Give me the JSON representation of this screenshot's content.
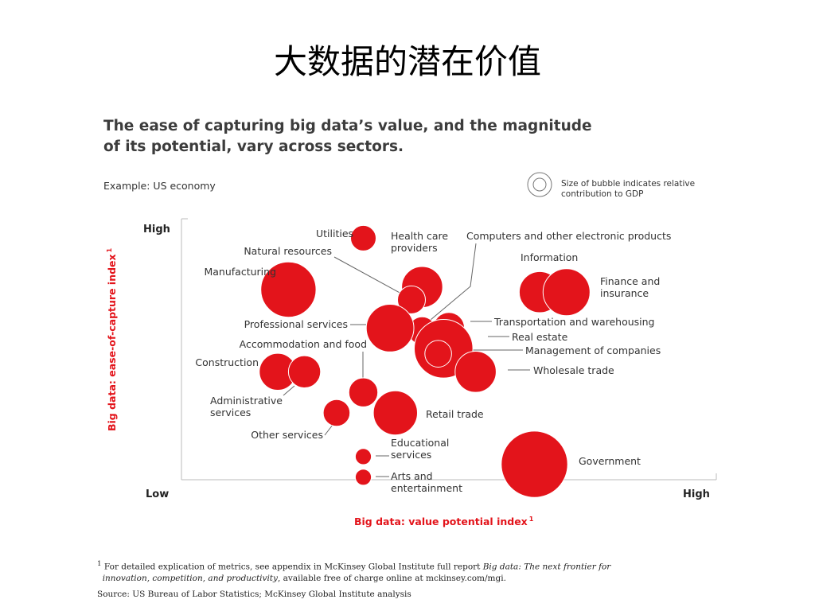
{
  "slide": {
    "title": "大数据的潜在价值"
  },
  "figure": {
    "headline_line1": "The ease of capturing big data’s value, and the magnitude",
    "headline_line2": "of its potential, vary across sectors.",
    "example": "Example: US economy",
    "bubble_note_line1": "Size of bubble indicates relative",
    "bubble_note_line2": "contribution to GDP"
  },
  "colors": {
    "bubble": "#e3141b",
    "axis_title": "#e3141b",
    "leader": "#666666"
  },
  "chart_data": {
    "type": "scatter",
    "title": "The ease of capturing big data’s value, and the magnitude of its potential, vary across sectors.",
    "subtitle": "Example: US economy",
    "xlabel": "Big data: value potential index",
    "ylabel": "Big data: ease-of-capture index",
    "x_low_label": "Low",
    "x_high_label": "High",
    "y_low_label": "Low",
    "y_high_label": "High",
    "footnote_marker": "1",
    "xlim": [
      0,
      100
    ],
    "ylim": [
      0,
      100
    ],
    "size_encoding": "Size of bubble indicates relative contribution to GDP",
    "grid": false,
    "points": [
      {
        "name": "Utilities",
        "x": 34,
        "y": 94,
        "size": 1.0
      },
      {
        "name": "Health care providers",
        "x": 45,
        "y": 75,
        "size": 2.6
      },
      {
        "name": "Natural resources",
        "x": 43,
        "y": 70,
        "size": 1.2
      },
      {
        "name": "Computers and other electronic products",
        "x": 45,
        "y": 58,
        "size": 1.2
      },
      {
        "name": "Manufacturing",
        "x": 20,
        "y": 74,
        "size": 4.7
      },
      {
        "name": "Information",
        "x": 67,
        "y": 73,
        "size": 2.6
      },
      {
        "name": "Finance and insurance",
        "x": 72,
        "y": 73,
        "size": 3.4
      },
      {
        "name": "Professional services",
        "x": 39,
        "y": 59,
        "size": 3.5
      },
      {
        "name": "Transportation and warehousing",
        "x": 50,
        "y": 59,
        "size": 1.5
      },
      {
        "name": "Real estate",
        "x": 49,
        "y": 51,
        "size": 5.3
      },
      {
        "name": "Management of companies",
        "x": 48,
        "y": 49,
        "size": 1.1
      },
      {
        "name": "Wholesale trade",
        "x": 55,
        "y": 42,
        "size": 2.6
      },
      {
        "name": "Construction",
        "x": 18,
        "y": 42,
        "size": 2.1
      },
      {
        "name": "Accommodation and food",
        "x": 23,
        "y": 42,
        "size": 1.6
      },
      {
        "name": "Administrative services",
        "x": 34,
        "y": 34,
        "size": 1.3
      },
      {
        "name": "Retail trade",
        "x": 40,
        "y": 26,
        "size": 3.0
      },
      {
        "name": "Other services",
        "x": 29,
        "y": 26,
        "size": 1.1
      },
      {
        "name": "Educational services",
        "x": 34,
        "y": 9,
        "size": 0.4
      },
      {
        "name": "Arts and entertainment",
        "x": 34,
        "y": 1,
        "size": 0.4
      },
      {
        "name": "Government",
        "x": 66,
        "y": 6,
        "size": 6.8
      }
    ],
    "labels": [
      {
        "text": "Utilities"
      },
      {
        "text": "Health care"
      },
      {
        "text": "providers"
      },
      {
        "text": "Natural resources"
      },
      {
        "text": "Computers and other electronic products"
      },
      {
        "text": "Manufacturing"
      },
      {
        "text": "Information"
      },
      {
        "text": "Finance and"
      },
      {
        "text": "insurance"
      },
      {
        "text": "Professional services"
      },
      {
        "text": "Transportation and warehousing"
      },
      {
        "text": "Real estate"
      },
      {
        "text": "Accommodation and food"
      },
      {
        "text": "Management of companies"
      },
      {
        "text": "Construction"
      },
      {
        "text": "Wholesale trade"
      },
      {
        "text": "Administrative"
      },
      {
        "text": "services"
      },
      {
        "text": "Retail trade"
      },
      {
        "text": "Other services"
      },
      {
        "text": "Educational"
      },
      {
        "text": "services"
      },
      {
        "text": "Government"
      },
      {
        "text": "Arts and"
      },
      {
        "text": "entertainment"
      }
    ]
  },
  "footnote": {
    "marker": "1",
    "line1_lead": "For detailed explication of metrics, see appendix in McKinsey Global Institute full report ",
    "line1_italic": "Big data: The next frontier for",
    "line2_italic": "innovation, competition, and productivity",
    "line2_rest": ", available free of charge online at mckinsey.com/mgi.",
    "source": "Source: US Bureau of Labor Statistics; McKinsey Global Institute analysis"
  }
}
